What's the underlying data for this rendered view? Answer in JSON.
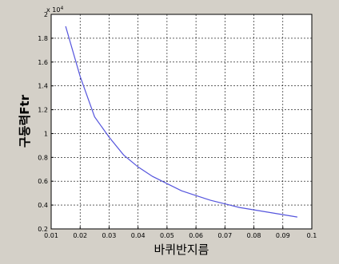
{
  "chart_data": {
    "type": "line",
    "xlabel": "바퀴반지름",
    "ylabel": "구동력Ftr",
    "multiplier": "x 10",
    "multiplier_exp": "4",
    "xlim": [
      0.01,
      0.1
    ],
    "ylim": [
      0.2,
      2
    ],
    "xticks": [
      "0.01",
      "0.02",
      "0.03",
      "0.04",
      "0.05",
      "0.06",
      "0.07",
      "0.08",
      "0.09",
      "0.1"
    ],
    "yticks": [
      "0.2",
      "0.4",
      "0.6",
      "0.8",
      "1",
      "1.2",
      "1.4",
      "1.6",
      "1.8",
      "2"
    ],
    "grid": true,
    "line_color": "#5555dd",
    "series": [
      {
        "x": [
          0.015,
          0.02,
          0.025,
          0.03,
          0.035,
          0.04,
          0.045,
          0.05,
          0.055,
          0.06,
          0.065,
          0.07,
          0.075,
          0.08,
          0.085,
          0.09,
          0.095
        ],
        "y": [
          1.9,
          1.48,
          1.14,
          0.97,
          0.82,
          0.72,
          0.64,
          0.58,
          0.52,
          0.48,
          0.44,
          0.41,
          0.38,
          0.36,
          0.34,
          0.32,
          0.3
        ]
      }
    ]
  }
}
